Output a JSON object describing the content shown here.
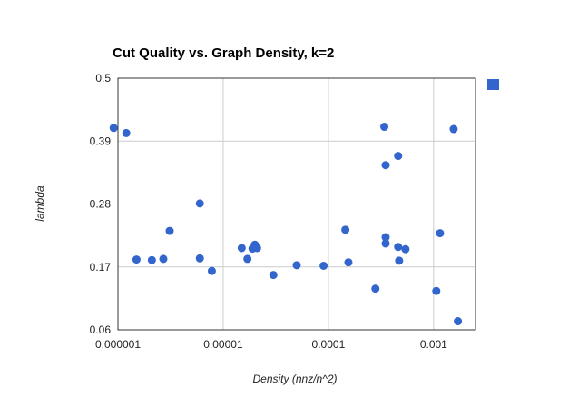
{
  "chart_data": {
    "type": "scatter",
    "title": "Cut Quality vs. Graph Density, k=2",
    "xlabel": "Density (nnz/n^2)",
    "ylabel": "lambda",
    "x_scale": "log",
    "xlim": [
      1e-06,
      0.0025
    ],
    "ylim": [
      0.06,
      0.5
    ],
    "x_ticks": [
      "0.000001",
      "0.00001",
      "0.0001",
      "0.001"
    ],
    "x_tick_values": [
      1e-06,
      1e-05,
      0.0001,
      0.001
    ],
    "y_ticks": [
      "0.06",
      "0.17",
      "0.28",
      "0.39",
      "0.5"
    ],
    "y_tick_values": [
      0.06,
      0.17,
      0.28,
      0.39,
      0.5
    ],
    "grid": true,
    "legend": "right",
    "series": [
      {
        "color": "#3366cc",
        "points": [
          {
            "x": 9.1e-07,
            "y": 0.413
          },
          {
            "x": 1.2e-06,
            "y": 0.404
          },
          {
            "x": 1.5e-06,
            "y": 0.183
          },
          {
            "x": 2.1e-06,
            "y": 0.182
          },
          {
            "x": 2.7e-06,
            "y": 0.184
          },
          {
            "x": 3.1e-06,
            "y": 0.233
          },
          {
            "x": 6e-06,
            "y": 0.281
          },
          {
            "x": 6e-06,
            "y": 0.185
          },
          {
            "x": 7.8e-06,
            "y": 0.163
          },
          {
            "x": 1.5e-05,
            "y": 0.203
          },
          {
            "x": 1.7e-05,
            "y": 0.184
          },
          {
            "x": 1.9e-05,
            "y": 0.202
          },
          {
            "x": 2e-05,
            "y": 0.209
          },
          {
            "x": 2.1e-05,
            "y": 0.203
          },
          {
            "x": 3e-05,
            "y": 0.156
          },
          {
            "x": 5e-05,
            "y": 0.173
          },
          {
            "x": 9e-05,
            "y": 0.172
          },
          {
            "x": 0.000145,
            "y": 0.235
          },
          {
            "x": 0.000155,
            "y": 0.178
          },
          {
            "x": 0.00028,
            "y": 0.132
          },
          {
            "x": 0.00034,
            "y": 0.415
          },
          {
            "x": 0.00035,
            "y": 0.348
          },
          {
            "x": 0.00035,
            "y": 0.222
          },
          {
            "x": 0.00035,
            "y": 0.211
          },
          {
            "x": 0.00046,
            "y": 0.364
          },
          {
            "x": 0.00046,
            "y": 0.205
          },
          {
            "x": 0.00047,
            "y": 0.181
          },
          {
            "x": 0.00054,
            "y": 0.201
          },
          {
            "x": 0.00106,
            "y": 0.128
          },
          {
            "x": 0.00115,
            "y": 0.229
          },
          {
            "x": 0.00155,
            "y": 0.411
          },
          {
            "x": 0.0017,
            "y": 0.075
          }
        ]
      }
    ]
  }
}
